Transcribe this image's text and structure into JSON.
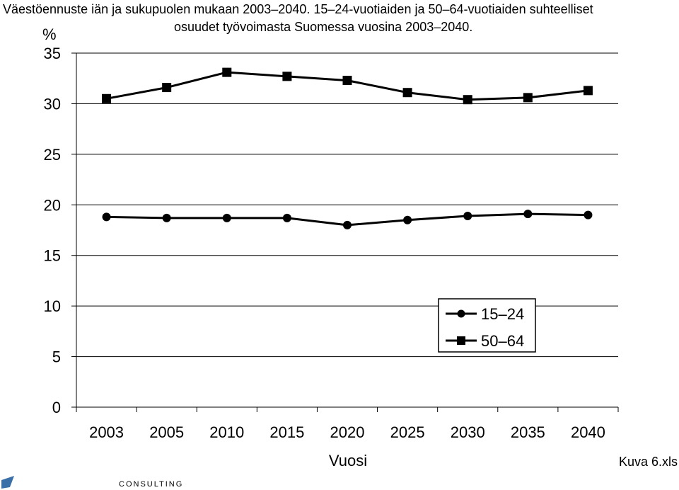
{
  "chart_data": {
    "type": "line",
    "title_line1": "Väestöennuste iän ja sukupuolen mukaan 2003–2040. 15–24-vuotiaiden ja 50–64-vuotiaiden suhteelliset",
    "title_line2": "osuudet työvoimasta Suomessa vuosina 2003–2040.",
    "ylabel": "%",
    "xlabel": "Vuosi",
    "categories": [
      "2003",
      "2005",
      "2010",
      "2015",
      "2020",
      "2025",
      "2030",
      "2035",
      "2040"
    ],
    "ylim": [
      0,
      35
    ],
    "yticks": [
      0,
      5,
      10,
      15,
      20,
      25,
      30,
      35
    ],
    "grid": true,
    "legend_position": "bottom-right",
    "series": [
      {
        "name": "15–24",
        "marker": "circle",
        "values": [
          18.8,
          18.7,
          18.7,
          18.7,
          18.0,
          18.5,
          18.9,
          19.1,
          19.0
        ]
      },
      {
        "name": "50–64",
        "marker": "square",
        "values": [
          30.5,
          31.6,
          33.1,
          32.7,
          32.3,
          31.1,
          30.4,
          30.6,
          31.3
        ]
      }
    ]
  },
  "footer": {
    "file_label": "Kuva 6.xls",
    "brand": "CONSULTING"
  }
}
